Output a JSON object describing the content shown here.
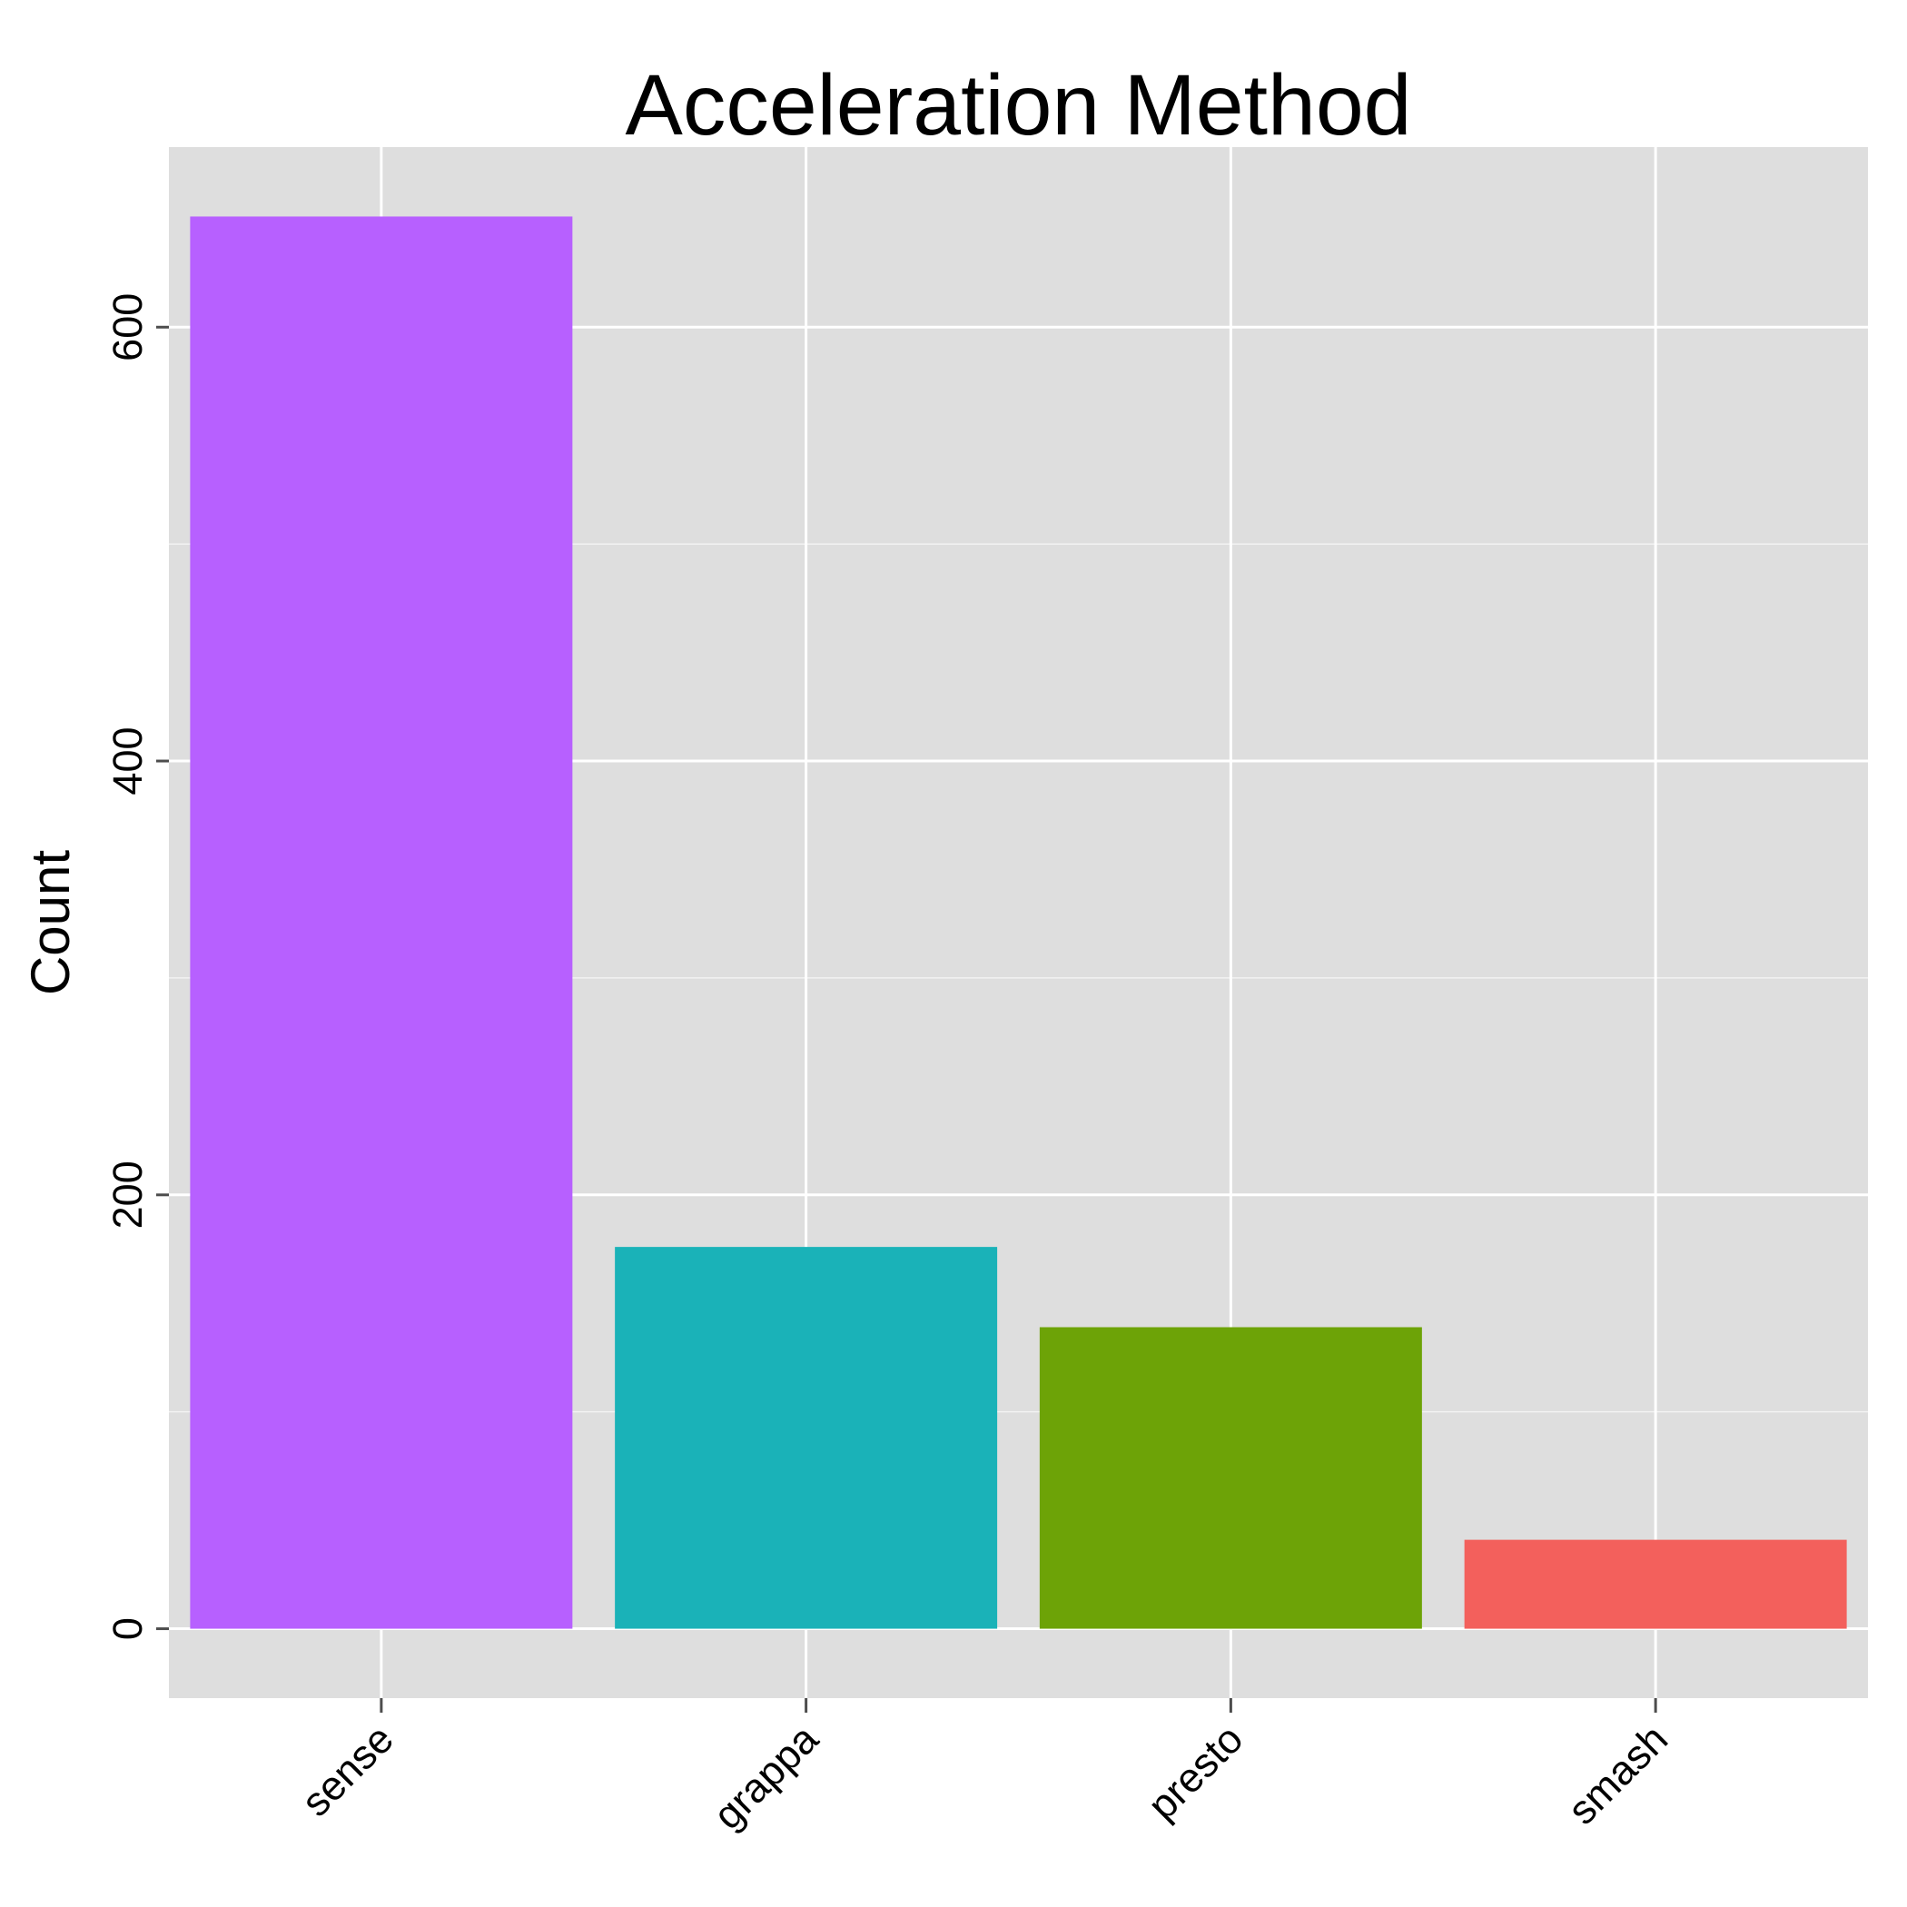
{
  "chart_data": {
    "type": "bar",
    "title": "Acceleration Method",
    "xlabel": "",
    "ylabel": "Count",
    "categories": [
      "sense",
      "grappa",
      "presto",
      "smash"
    ],
    "values": [
      651,
      176,
      139,
      41
    ],
    "colors": [
      "#B760FF",
      "#1AB2B8",
      "#6DA307",
      "#F3605C"
    ],
    "ylim": [
      -32,
      683
    ],
    "yticks": [
      0,
      200,
      400,
      600
    ],
    "ytick_labels": [
      "0",
      "200",
      "400",
      "600"
    ],
    "y_minor_ticks": [
      100,
      300,
      500
    ],
    "grid": true,
    "legend": "none",
    "panel_background": "#DEDEDE",
    "grid_color": "#FFFFFF"
  }
}
